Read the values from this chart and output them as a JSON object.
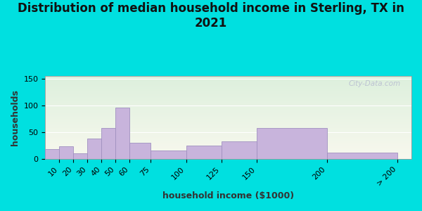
{
  "title": "Distribution of median household income in Sterling, TX in\n2021",
  "xlabel": "household income ($1000)",
  "ylabel": "households",
  "bar_lefts": [
    0,
    10,
    20,
    30,
    40,
    50,
    60,
    75,
    100,
    125,
    150,
    200
  ],
  "bar_widths": [
    10,
    10,
    10,
    10,
    10,
    10,
    15,
    25,
    25,
    25,
    50,
    50
  ],
  "bar_heights": [
    18,
    23,
    10,
    38,
    58,
    95,
    30,
    15,
    25,
    32,
    58,
    12
  ],
  "xtick_positions": [
    10,
    20,
    30,
    40,
    50,
    60,
    75,
    100,
    125,
    150,
    200,
    250
  ],
  "xtick_labels": [
    "10",
    "20",
    "30",
    "40",
    "50",
    "60",
    "75",
    "100",
    "125",
    "150",
    "200",
    "> 200"
  ],
  "bar_color": "#c8b4dc",
  "bar_edge_color": "#a090c0",
  "ylim": [
    0,
    155
  ],
  "yticks": [
    0,
    50,
    100,
    150
  ],
  "xlim": [
    0,
    260
  ],
  "bg_outer": "#00e0e0",
  "bg_plot_top": "#ddf0dd",
  "bg_plot_bottom": "#f8f8ee",
  "title_fontsize": 12,
  "axis_label_fontsize": 9,
  "tick_fontsize": 8,
  "watermark": "City-Data.com"
}
